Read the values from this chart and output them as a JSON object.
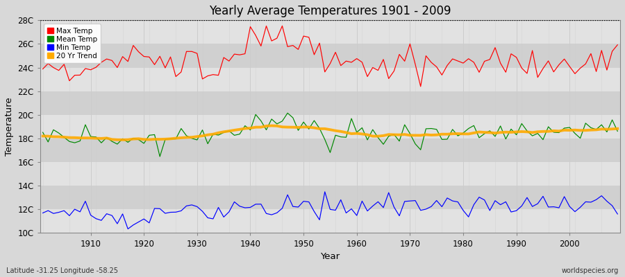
{
  "title": "Yearly Average Temperatures 1901 - 2009",
  "xlabel": "Year",
  "ylabel": "Temperature",
  "lat_lon_label": "Latitude -31.25 Longitude -58.25",
  "watermark": "worldspecies.org",
  "year_start": 1901,
  "year_end": 2009,
  "ylim": [
    10,
    28
  ],
  "yticks": [
    10,
    12,
    14,
    16,
    18,
    20,
    22,
    24,
    26,
    28
  ],
  "ytick_labels": [
    "10C",
    "12C",
    "14C",
    "16C",
    "18C",
    "20C",
    "22C",
    "24C",
    "26C",
    "28C"
  ],
  "xticks": [
    1910,
    1920,
    1930,
    1940,
    1950,
    1960,
    1970,
    1980,
    1990,
    2000
  ],
  "bg_color": "#d8d8d8",
  "plot_bg_color": "#d8d8d8",
  "band_color_light": "#e8e8e8",
  "band_color_dark": "#d0d0d0",
  "grid_color": "#bbbbbb",
  "vgrid_color": "#cccccc",
  "max_temp_color": "#ff0000",
  "mean_temp_color": "#008800",
  "min_temp_color": "#0000ff",
  "trend_color": "#ffaa00",
  "legend_labels": [
    "Max Temp",
    "Mean Temp",
    "Min Temp",
    "20 Yr Trend"
  ],
  "dotted_line_y": 28
}
